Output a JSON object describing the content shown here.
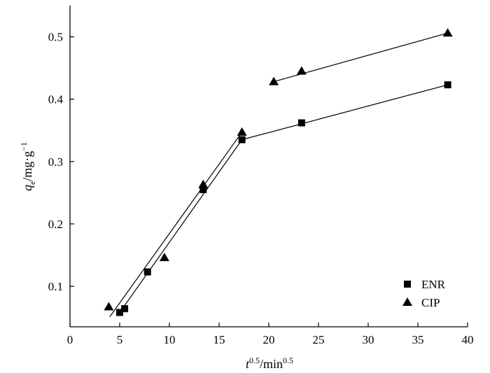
{
  "chart_data": {
    "type": "scatter",
    "xlabel": {
      "main": "t",
      "main_sup": "0.5",
      "unit": "/min",
      "unit_sup": "0.5"
    },
    "ylabel": {
      "main": "q",
      "main_sub": "e",
      "unit": "/mg·g",
      "unit_sup": "−1"
    },
    "xlim": [
      0,
      40
    ],
    "ylim": [
      0.035,
      0.55
    ],
    "xticks": [
      0,
      5,
      10,
      15,
      20,
      25,
      30,
      35,
      40
    ],
    "xtick_labels": [
      "0",
      "5",
      "10",
      "15",
      "20",
      "25",
      "30",
      "35",
      "40"
    ],
    "yticks": [
      0.1,
      0.2,
      0.3,
      0.4,
      0.5
    ],
    "ytick_labels": [
      "0.1",
      "0.2",
      "0.3",
      "0.4",
      "0.5"
    ],
    "grid": false,
    "legend_position": "bottom-right",
    "series": [
      {
        "name": "ENR",
        "marker": "square",
        "color": "#000000",
        "points": [
          [
            5.0,
            0.058
          ],
          [
            5.5,
            0.064
          ],
          [
            7.8,
            0.123
          ],
          [
            13.4,
            0.255
          ],
          [
            17.3,
            0.335
          ],
          [
            23.3,
            0.362
          ],
          [
            38.0,
            0.423
          ]
        ],
        "fit_lines": [
          [
            [
              5.0,
              0.058
            ],
            [
              17.3,
              0.335
            ]
          ],
          [
            [
              17.3,
              0.335
            ],
            [
              38.0,
              0.423
            ]
          ]
        ]
      },
      {
        "name": "CIP",
        "marker": "triangle",
        "color": "#000000",
        "points": [
          [
            3.9,
            0.067
          ],
          [
            9.5,
            0.146
          ],
          [
            13.4,
            0.263
          ],
          [
            17.3,
            0.347
          ],
          [
            20.5,
            0.428
          ],
          [
            23.3,
            0.445
          ],
          [
            38.0,
            0.506
          ]
        ],
        "fit_lines": [
          [
            [
              4.0,
              0.051
            ],
            [
              17.3,
              0.347
            ]
          ],
          [
            [
              20.5,
              0.428
            ],
            [
              38.0,
              0.506
            ]
          ]
        ]
      }
    ]
  }
}
